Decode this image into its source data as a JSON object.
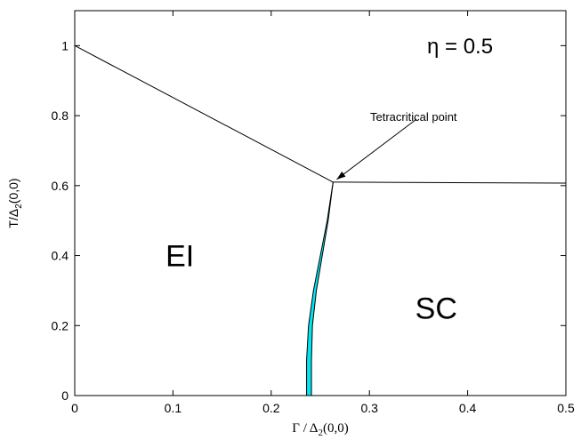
{
  "chart_data": {
    "type": "line",
    "xlabel_main": "Γ / Δ",
    "xlabel_sub": "2",
    "xlabel_tail": "(0,0)",
    "ylabel_main": "T/Δ",
    "ylabel_sub": "2",
    "ylabel_tail": "(0,0)",
    "xlim": [
      0,
      0.5
    ],
    "ylim": [
      0,
      1.1
    ],
    "x_ticks": [
      0,
      0.1,
      0.2,
      0.3,
      0.4,
      0.5
    ],
    "x_tick_labels": [
      "0",
      "0.1",
      "0.2",
      "0.3",
      "0.4",
      "0.5"
    ],
    "y_ticks": [
      0,
      0.2,
      0.4,
      0.6,
      0.8,
      1
    ],
    "y_tick_labels": [
      "0",
      "0.2",
      "0.4",
      "0.6",
      "0.8",
      "1"
    ],
    "grid": false,
    "series": [
      {
        "points": [
          [
            0,
            1.0
          ],
          [
            0.263,
            0.61
          ]
        ]
      },
      {
        "points": [
          [
            0.263,
            0.61
          ],
          [
            0.5,
            0.607
          ]
        ]
      },
      {
        "points": [
          [
            0.236,
            0
          ],
          [
            0.236,
            0.1
          ],
          [
            0.238,
            0.2
          ],
          [
            0.243,
            0.3
          ],
          [
            0.25,
            0.4
          ],
          [
            0.257,
            0.5
          ],
          [
            0.263,
            0.61
          ]
        ]
      },
      {
        "points": [
          [
            0.241,
            0
          ],
          [
            0.241,
            0.1
          ],
          [
            0.242,
            0.2
          ],
          [
            0.246,
            0.3
          ],
          [
            0.252,
            0.4
          ],
          [
            0.258,
            0.5
          ],
          [
            0.263,
            0.61
          ]
        ]
      }
    ],
    "fill_color": "#00e5ee",
    "line_color": "#000000",
    "regions": [
      {
        "label": "EI",
        "x": 0.107,
        "y": 0.4
      },
      {
        "label": "SC",
        "x": 0.368,
        "y": 0.25
      }
    ],
    "eta_text": "η = 0.5",
    "annotation": {
      "text": "Tetracritical point",
      "point": [
        0.263,
        0.61
      ],
      "text_at": [
        0.348,
        0.79
      ]
    }
  }
}
